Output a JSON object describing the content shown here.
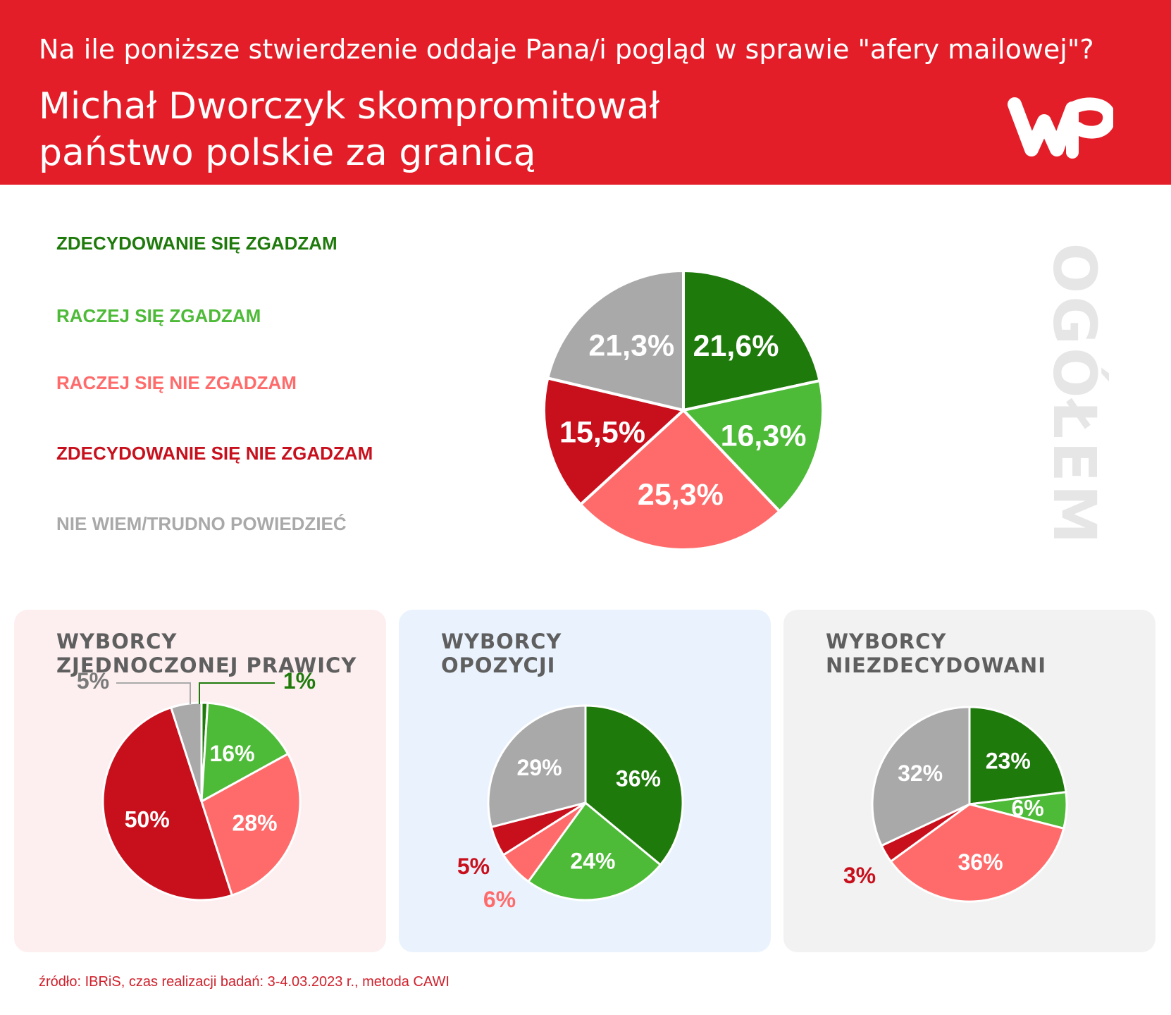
{
  "header": {
    "question": "Na ile poniższe stwierdzenie oddaje Pana/i pogląd w sprawie \"afery mailowej\"?",
    "headline_line1": "Michał Dworczyk skompromitował",
    "headline_line2": "państwo polskie za granicą"
  },
  "side_label": "OGÓŁEM",
  "legend": [
    {
      "label": "ZDECYDOWANIE SIĘ ZGADZAM",
      "color": "#1f7a0c"
    },
    {
      "label": "RACZEJ SIĘ ZGADZAM",
      "color": "#4dba38"
    },
    {
      "label": "RACZEJ SIĘ NIE ZGADZAM",
      "color": "#ff6b6b"
    },
    {
      "label": "ZDECYDOWANIE SIĘ NIE ZGADZAM",
      "color": "#c8101d"
    },
    {
      "label": "NIE WIEM/TRUDNO POWIEDZIEĆ",
      "color": "#a9a9a9"
    }
  ],
  "chart_data": [
    {
      "type": "pie",
      "title": "OGÓŁEM",
      "categories": [
        "ZDECYDOWANIE SIĘ ZGADZAM",
        "RACZEJ SIĘ ZGADZAM",
        "RACZEJ SIĘ NIE ZGADZAM",
        "ZDECYDOWANIE SIĘ NIE ZGADZAM",
        "NIE WIEM/TRUDNO POWIEDZIEĆ"
      ],
      "values": [
        21.6,
        16.3,
        25.3,
        15.5,
        21.3
      ],
      "labels": [
        "21,6%",
        "16,3%",
        "25,3%",
        "15,5%",
        "21,3%"
      ]
    },
    {
      "type": "pie",
      "title": "WYBORCY ZJEDNOCZONEJ PRAWICY",
      "categories": [
        "ZDECYDOWANIE SIĘ ZGADZAM",
        "RACZEJ SIĘ ZGADZAM",
        "RACZEJ SIĘ NIE ZGADZAM",
        "ZDECYDOWANIE SIĘ NIE ZGADZAM",
        "NIE WIEM/TRUDNO POWIEDZIEĆ"
      ],
      "values": [
        1,
        16,
        28,
        50,
        5
      ],
      "labels": [
        "1%",
        "16%",
        "28%",
        "50%",
        "5%"
      ]
    },
    {
      "type": "pie",
      "title": "WYBORCY OPOZYCJI",
      "categories": [
        "ZDECYDOWANIE SIĘ ZGADZAM",
        "RACZEJ SIĘ ZGADZAM",
        "RACZEJ SIĘ NIE ZGADZAM",
        "ZDECYDOWANIE SIĘ NIE ZGADZAM",
        "NIE WIEM/TRUDNO POWIEDZIEĆ"
      ],
      "values": [
        36,
        24,
        6,
        5,
        29
      ],
      "labels": [
        "36%",
        "24%",
        "6%",
        "5%",
        "29%"
      ]
    },
    {
      "type": "pie",
      "title": "WYBORCY NIEZDECYDOWANI",
      "categories": [
        "ZDECYDOWANIE SIĘ ZGADZAM",
        "RACZEJ SIĘ ZGADZAM",
        "RACZEJ SIĘ NIE ZGADZAM",
        "ZDECYDOWANIE SIĘ NIE ZGADZAM",
        "NIE WIEM/TRUDNO POWIEDZIEĆ"
      ],
      "values": [
        23,
        6,
        36,
        3,
        32
      ],
      "labels": [
        "23%",
        "6%",
        "36%",
        "3%",
        "32%"
      ]
    }
  ],
  "panels": [
    {
      "title_line1": "WYBORCY",
      "title_line2": "ZJEDNOCZONEJ PRAWICY",
      "background": "#fdeff0"
    },
    {
      "title_line1": "WYBORCY",
      "title_line2": "OPOZYCJI",
      "background": "#eaf3fd"
    },
    {
      "title_line1": "WYBORCY",
      "title_line2": "NIEZDECYDOWANI",
      "background": "#f2f2f2"
    }
  ],
  "source": "źródło: IBRiS, czas realizacji badań: 3-4.03.2023 r., metoda CAWI"
}
